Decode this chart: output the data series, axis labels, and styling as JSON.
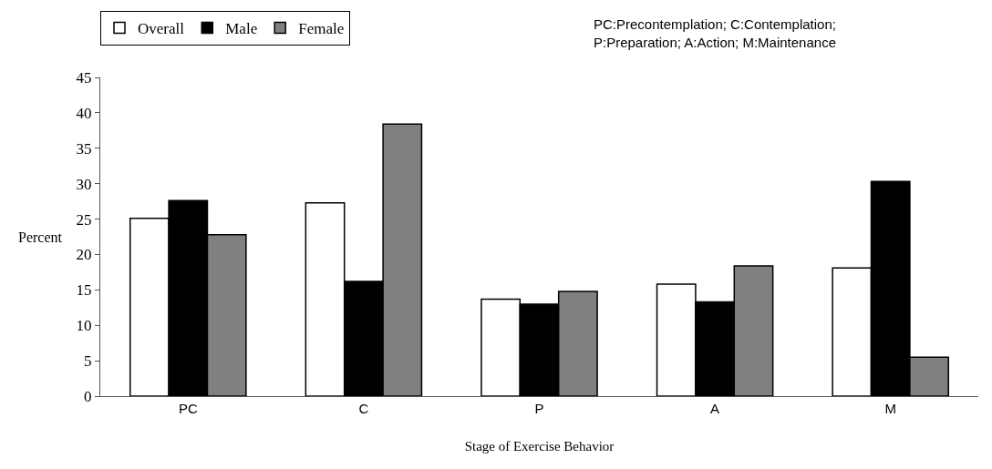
{
  "chart_data": {
    "type": "bar",
    "xlabel": "Stage of Exercise Behavior",
    "ylabel": "Percent",
    "categories": [
      "PC",
      "C",
      "P",
      "A",
      "M"
    ],
    "series": [
      {
        "name": "Overall",
        "color": "#ffffff",
        "values": [
          25.1,
          27.3,
          13.7,
          15.8,
          18.1
        ]
      },
      {
        "name": "Male",
        "color": "#000000",
        "values": [
          27.6,
          16.2,
          13.0,
          13.3,
          30.3
        ]
      },
      {
        "name": "Female",
        "color": "#808080",
        "values": [
          22.8,
          38.4,
          14.8,
          18.4,
          5.5
        ]
      }
    ],
    "ylim": [
      0,
      45
    ],
    "yticks": [
      0,
      5,
      10,
      15,
      20,
      25,
      30,
      35,
      40,
      45
    ],
    "legend": "top left",
    "annotations": [
      "PC:Precontemplation; C:Contemplation;\nP:Preparation; A:Action; M:Maintenance"
    ]
  }
}
